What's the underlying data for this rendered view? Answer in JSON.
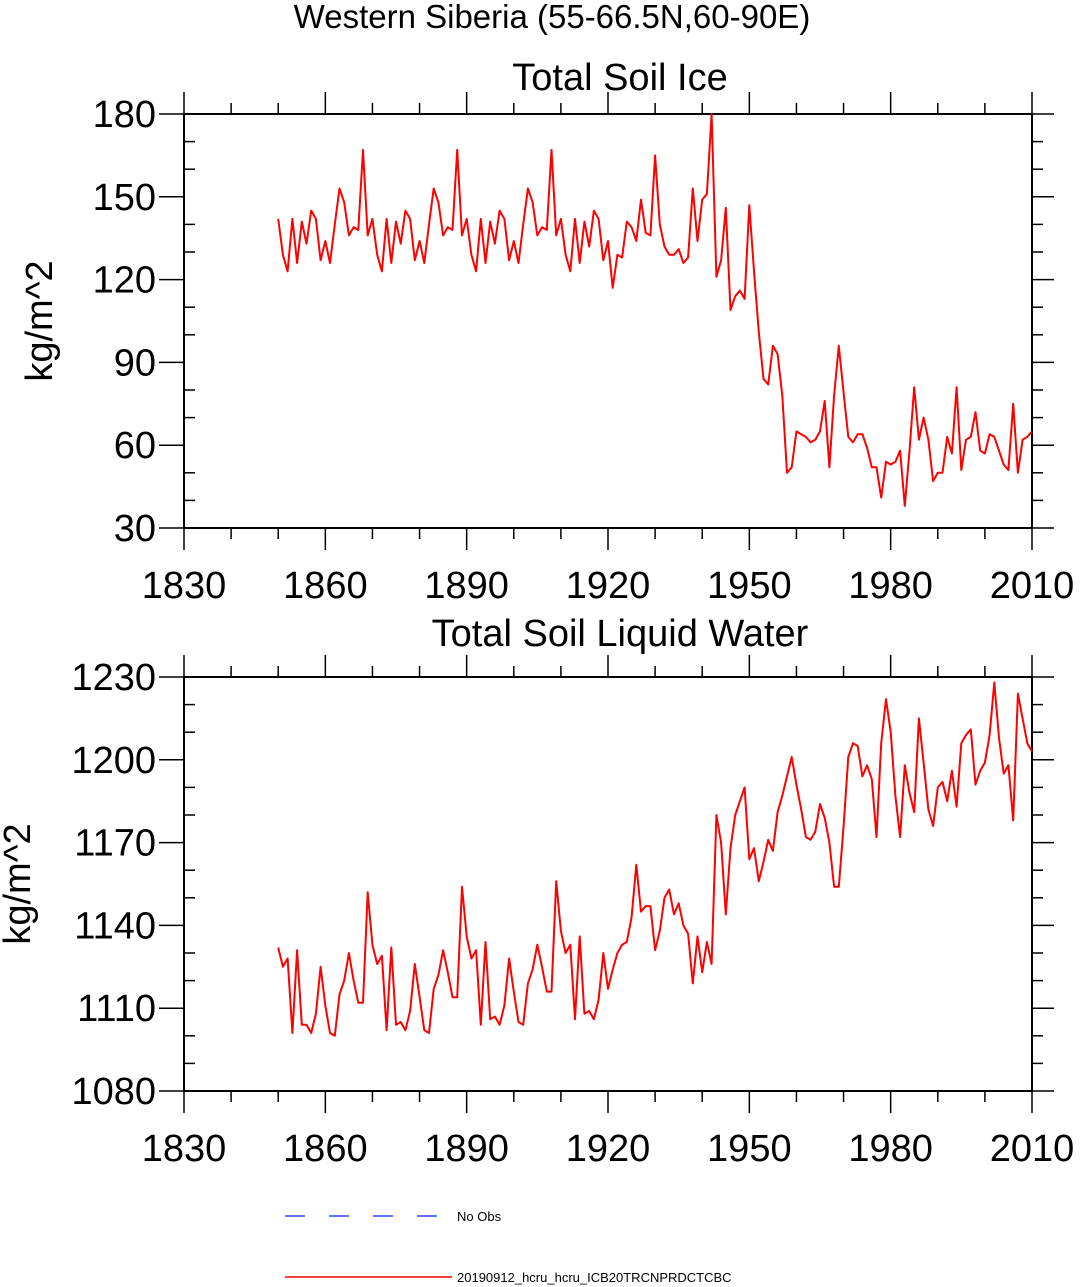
{
  "figure": {
    "title": "Western Siberia (55-66.5N,60-90E)",
    "series_color": "#ff0000",
    "legend_color_obs": "#3344ff",
    "legend": [
      {
        "label": "No Obs",
        "style": "dashed",
        "color": "#3344ff"
      },
      {
        "label": "20190912_hcru_hcru_ICB20TRCNPRDCTCBC",
        "style": "solid",
        "color": "#ff0000"
      }
    ]
  },
  "chart_data": [
    {
      "type": "line",
      "title": "Total Soil Ice",
      "xlabel": "",
      "ylabel": "kg/m^2",
      "xlim": [
        1830,
        2010
      ],
      "ylim": [
        30,
        180
      ],
      "xticks": [
        1830,
        1860,
        1890,
        1920,
        1950,
        1980,
        2010
      ],
      "yticks": [
        30,
        60,
        90,
        120,
        150,
        180
      ],
      "grid": false,
      "series": [
        {
          "name": "20190912_hcru_hcru_ICB20TRCNPRDCTCBC",
          "x_start": 1850,
          "x_step": 1,
          "values": [
            142,
            129,
            123,
            142,
            126,
            141,
            133,
            145,
            142,
            127,
            134,
            126,
            140,
            153,
            148,
            136,
            139,
            138,
            167,
            136,
            142,
            129,
            123,
            142,
            126,
            141,
            133,
            145,
            142,
            127,
            134,
            126,
            140,
            153,
            148,
            136,
            139,
            138,
            167,
            136,
            142,
            129,
            123,
            142,
            126,
            141,
            133,
            145,
            142,
            127,
            134,
            126,
            140,
            153,
            148,
            136,
            139,
            138,
            167,
            136,
            142,
            129,
            123,
            142,
            126,
            141,
            132,
            145,
            142,
            127,
            134,
            117,
            129,
            128,
            141,
            139,
            134,
            149,
            137,
            136,
            165,
            140,
            132,
            129,
            129,
            131,
            126,
            128,
            153,
            134,
            149,
            151,
            180,
            121,
            127,
            146,
            109,
            114,
            116,
            113,
            147,
            123,
            101,
            84,
            82,
            96,
            93,
            78,
            50,
            52,
            65,
            64,
            63,
            61,
            62,
            65,
            76,
            52,
            78,
            96,
            79,
            63,
            61,
            64,
            64,
            59,
            52,
            52,
            41,
            54,
            53,
            54,
            58,
            38,
            58,
            81,
            62,
            70,
            62,
            47,
            50,
            50,
            63,
            57,
            81,
            51,
            62,
            63,
            72,
            58,
            57,
            64,
            63,
            58,
            53,
            51,
            75,
            50,
            62,
            63,
            65
          ]
        }
      ]
    },
    {
      "type": "line",
      "title": "Total Soil Liquid Water",
      "xlabel": "",
      "ylabel": "kg/m^2",
      "xlim": [
        1830,
        2010
      ],
      "ylim": [
        1080,
        1230
      ],
      "xticks": [
        1830,
        1860,
        1890,
        1920,
        1950,
        1980,
        2010
      ],
      "yticks": [
        1080,
        1110,
        1140,
        1170,
        1200,
        1230
      ],
      "grid": false,
      "series": [
        {
          "name": "20190912_hcru_hcru_ICB20TRCNPRDCTCBC",
          "x_start": 1850,
          "x_step": 1,
          "values": [
            1132,
            1125,
            1128,
            1101,
            1131,
            1104,
            1104,
            1101,
            1108,
            1125,
            1111,
            1101,
            1100,
            1115,
            1120,
            1130,
            1120,
            1112,
            1112,
            1152,
            1133,
            1126,
            1129,
            1102,
            1132,
            1104,
            1105,
            1102,
            1109,
            1126,
            1114,
            1102,
            1101,
            1117,
            1122,
            1131,
            1123,
            1114,
            1114,
            1154,
            1136,
            1128,
            1131,
            1104,
            1134,
            1106,
            1107,
            1104,
            1111,
            1128,
            1116,
            1105,
            1104,
            1119,
            1124,
            1133,
            1125,
            1116,
            1116,
            1156,
            1138,
            1130,
            1133,
            1106,
            1136,
            1108,
            1109,
            1106,
            1113,
            1130,
            1117,
            1124,
            1130,
            1133,
            1134,
            1143,
            1162,
            1145,
            1147,
            1147,
            1131,
            1138,
            1150,
            1153,
            1144,
            1148,
            1140,
            1137,
            1119,
            1136,
            1123,
            1134,
            1126,
            1180,
            1170,
            1144,
            1168,
            1180,
            1185,
            1190,
            1164,
            1168,
            1156,
            1163,
            1171,
            1167,
            1181,
            1187,
            1194,
            1201,
            1191,
            1182,
            1172,
            1171,
            1174,
            1184,
            1179,
            1170,
            1154,
            1154,
            1176,
            1201,
            1206,
            1205,
            1194,
            1198,
            1193,
            1172,
            1206,
            1222,
            1210,
            1187,
            1172,
            1198,
            1188,
            1181,
            1215,
            1199,
            1182,
            1176,
            1190,
            1192,
            1185,
            1196,
            1183,
            1206,
            1209,
            1211,
            1191,
            1196,
            1199,
            1209,
            1228,
            1208,
            1195,
            1198,
            1178,
            1224,
            1215,
            1206,
            1203
          ]
        }
      ]
    }
  ]
}
